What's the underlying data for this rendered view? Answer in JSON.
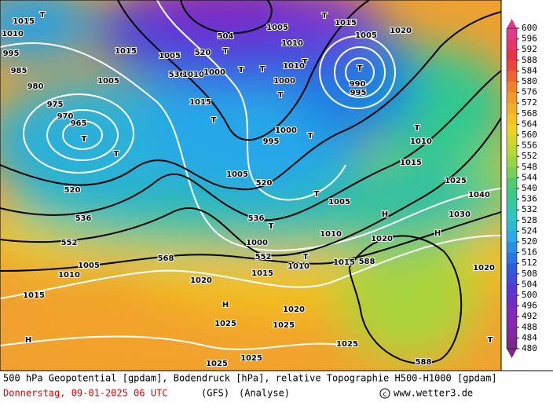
{
  "map": {
    "labels": [
      "1015",
      "1010",
      "995",
      "985",
      "980",
      "975",
      "970",
      "965",
      "T",
      "T",
      "520",
      "536",
      "552",
      "568",
      "1010",
      "1005",
      "1015",
      "H",
      "1005",
      "1015",
      "520",
      "504",
      "536",
      "1015",
      "T",
      "1005",
      "520",
      "536",
      "552",
      "T",
      "1000",
      "1015",
      "1010",
      "T",
      "588",
      "1015",
      "1020",
      "H",
      "1025",
      "1020",
      "1025",
      "1025",
      "1025",
      "1025",
      "588",
      "1020",
      "T",
      "H",
      "H",
      "1030",
      "1025",
      "1040",
      "T",
      "990",
      "995",
      "1005",
      "1015",
      "1020",
      "T",
      "1010",
      "1000",
      "T",
      "995",
      "T",
      "1015",
      "1010",
      "T",
      "1000",
      "1005",
      "T",
      "1010",
      "1020",
      "1005",
      "T",
      "T",
      "T",
      "T",
      "1010",
      "1000",
      "T",
      "1005",
      "1010"
    ],
    "colorbar_ticks": [
      600,
      596,
      592,
      588,
      584,
      580,
      576,
      572,
      568,
      564,
      560,
      556,
      552,
      548,
      544,
      540,
      536,
      532,
      528,
      524,
      520,
      516,
      512,
      508,
      504,
      500,
      496,
      492,
      488,
      484,
      480
    ]
  },
  "footer": {
    "description": "500 hPa Geopotential [gpdam], Bodendruck [hPa], relative Topographie H500-H1000 [gpdam]",
    "date": "Donnerstag, 09-01-2025  06 UTC",
    "model": "(GFS)",
    "run": "(Analyse)",
    "source": "www.wetter3.de"
  }
}
